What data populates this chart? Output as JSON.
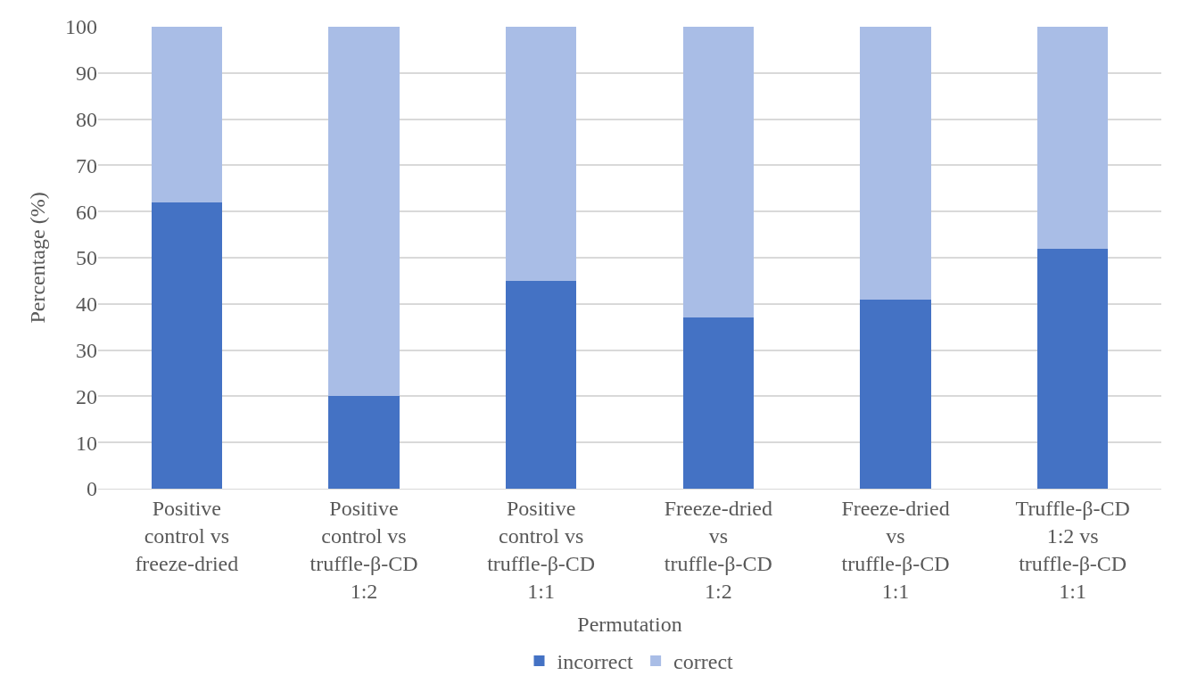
{
  "chart_data": {
    "type": "bar",
    "stacked": true,
    "xlabel": "Permutation",
    "ylabel": "Percentage (%)",
    "categories": [
      "Positive control vs freeze-dried",
      "Positive control vs truffle-β-CD 1:2",
      "Positive control vs truffle-β-CD 1:1",
      "Freeze-dried vs truffle-β-CD 1:2",
      "Freeze-dried vs truffle-β-CD 1:1",
      "Truffle-β-CD 1:2 vs truffle-β-CD 1:1"
    ],
    "series": [
      {
        "name": "incorrect",
        "color": "#4472c4",
        "values": [
          62,
          20,
          45,
          37,
          41,
          52
        ]
      },
      {
        "name": "correct",
        "color": "#a9bde6",
        "values": [
          38,
          80,
          55,
          63,
          59,
          48
        ]
      }
    ],
    "ylim": [
      0,
      100
    ],
    "yticks": [
      0,
      10,
      20,
      30,
      40,
      50,
      60,
      70,
      80,
      90,
      100
    ],
    "grid": "y",
    "legend": "bottom"
  }
}
